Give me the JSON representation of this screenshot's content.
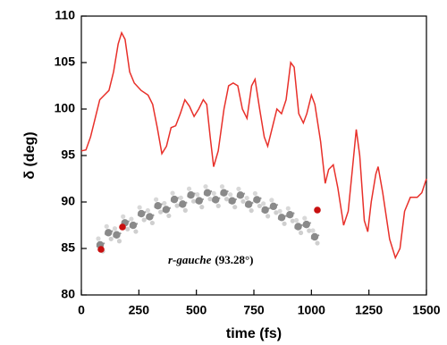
{
  "chart_data": {
    "type": "line",
    "x_label": "time (fs)",
    "y_label": "δ (deg)",
    "annotation": {
      "conformer": "r-gauche",
      "angle": "(93.28°)"
    },
    "xlim": [
      0,
      1500
    ],
    "xticks": [
      0,
      250,
      500,
      750,
      1000,
      1250,
      1500
    ],
    "ylim": [
      80,
      110
    ],
    "yticks": [
      80,
      85,
      90,
      95,
      100,
      105,
      110
    ],
    "series": [
      {
        "color": "#e8302a",
        "x": [
          0,
          20,
          40,
          60,
          80,
          100,
          120,
          140,
          160,
          175,
          190,
          210,
          230,
          260,
          290,
          310,
          330,
          350,
          370,
          390,
          410,
          430,
          450,
          470,
          490,
          510,
          530,
          545,
          560,
          575,
          595,
          620,
          640,
          660,
          680,
          700,
          720,
          740,
          755,
          775,
          795,
          810,
          830,
          850,
          870,
          890,
          910,
          925,
          945,
          965,
          980,
          1000,
          1015,
          1040,
          1060,
          1075,
          1095,
          1115,
          1140,
          1160,
          1180,
          1195,
          1210,
          1230,
          1245,
          1260,
          1280,
          1290,
          1310,
          1340,
          1365,
          1385,
          1405,
          1430,
          1460,
          1480,
          1500
        ],
        "values": [
          95.5,
          95.6,
          97,
          99,
          101,
          101.5,
          102,
          104,
          107,
          108.2,
          107.5,
          104,
          102.8,
          102,
          101.5,
          100.5,
          98,
          95.2,
          96,
          98,
          98.2,
          99.5,
          101,
          100.3,
          99.2,
          100,
          101,
          100.5,
          97,
          93.8,
          95.5,
          100,
          102.5,
          102.8,
          102.5,
          100,
          99,
          102.5,
          103.2,
          100,
          97,
          96,
          98,
          100,
          99.5,
          101,
          105,
          104.5,
          99.5,
          98.5,
          99.5,
          101.5,
          100.5,
          96.5,
          92,
          93.5,
          94,
          91.5,
          87.5,
          89,
          94,
          97.8,
          95,
          88,
          86.8,
          90,
          93,
          93.8,
          91,
          86,
          84,
          85,
          89,
          90.5,
          90.5,
          91,
          92.5
        ]
      }
    ]
  }
}
